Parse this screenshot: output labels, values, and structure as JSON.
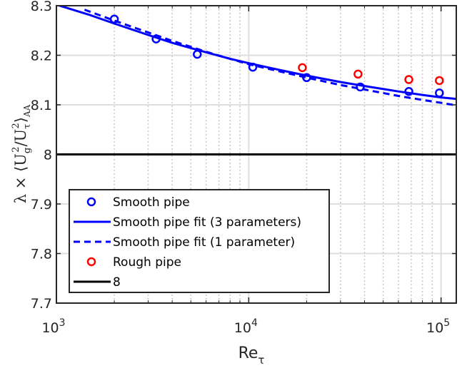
{
  "chart_data": {
    "type": "scatter",
    "title": "",
    "xlabel_main": "Re",
    "xlabel_sub": "τ",
    "ylabel_parts": [
      "λ × ⟨U",
      "g",
      "2",
      "/U",
      "τ",
      "2",
      "⟩",
      "AA"
    ],
    "xscale": "log",
    "xlim": [
      1000,
      120000
    ],
    "ylim": [
      7.7,
      8.3
    ],
    "grid": true,
    "x_ticks": [
      {
        "value": 1000,
        "base": "10",
        "exp": "3"
      },
      {
        "value": 10000,
        "base": "10",
        "exp": "4"
      },
      {
        "value": 100000,
        "base": "10",
        "exp": "5"
      }
    ],
    "y_ticks": [
      {
        "value": 7.7,
        "label": "7.7"
      },
      {
        "value": 7.8,
        "label": "7.8"
      },
      {
        "value": 7.9,
        "label": "7.9"
      },
      {
        "value": 8.0,
        "label": "8"
      },
      {
        "value": 8.1,
        "label": "8.1"
      },
      {
        "value": 8.2,
        "label": "8.2"
      },
      {
        "value": 8.3,
        "label": "8.3"
      }
    ],
    "series": [
      {
        "name": "Smooth pipe",
        "kind": "markers",
        "color": "#0000ff",
        "x": [
          2000,
          3300,
          5400,
          10500,
          20000,
          38000,
          68000,
          98000
        ],
        "y": [
          8.273,
          8.233,
          8.202,
          8.176,
          8.155,
          8.136,
          8.127,
          8.124
        ]
      },
      {
        "name": "Smooth pipe fit (3 parameters)",
        "kind": "line",
        "dash": "solid",
        "color": "#0000ff",
        "x": [
          1000,
          1500,
          2000,
          3000,
          4000,
          6000,
          8000,
          10000,
          15000,
          20000,
          30000,
          40000,
          60000,
          80000,
          100000,
          120000
        ],
        "y": [
          8.302,
          8.281,
          8.264,
          8.241,
          8.225,
          8.206,
          8.193,
          8.184,
          8.169,
          8.159,
          8.146,
          8.138,
          8.127,
          8.12,
          8.115,
          8.112
        ]
      },
      {
        "name": "Smooth pipe fit (1 parameter)",
        "kind": "line",
        "dash": "dashed",
        "color": "#0000ff",
        "x": [
          1400,
          2000,
          3000,
          4000,
          6000,
          8000,
          10000,
          15000,
          20000,
          30000,
          40000,
          60000,
          80000,
          100000,
          120000
        ],
        "y": [
          8.292,
          8.27,
          8.246,
          8.229,
          8.207,
          8.193,
          8.182,
          8.166,
          8.155,
          8.14,
          8.131,
          8.118,
          8.11,
          8.104,
          8.099
        ]
      },
      {
        "name": "Rough pipe",
        "kind": "markers",
        "color": "#ff0000",
        "x": [
          19000,
          37000,
          68000,
          98000
        ],
        "y": [
          8.175,
          8.162,
          8.151,
          8.149
        ]
      },
      {
        "name": "8",
        "kind": "hline",
        "color": "#000000",
        "x": [
          1000,
          120000
        ],
        "y": [
          8.0,
          8.0
        ]
      }
    ],
    "legend": {
      "position": "bottom-left",
      "entries": [
        "Smooth pipe",
        "Smooth pipe fit (3 parameters)",
        "Smooth pipe fit (1 parameter)",
        "Rough pipe",
        "8"
      ]
    }
  }
}
